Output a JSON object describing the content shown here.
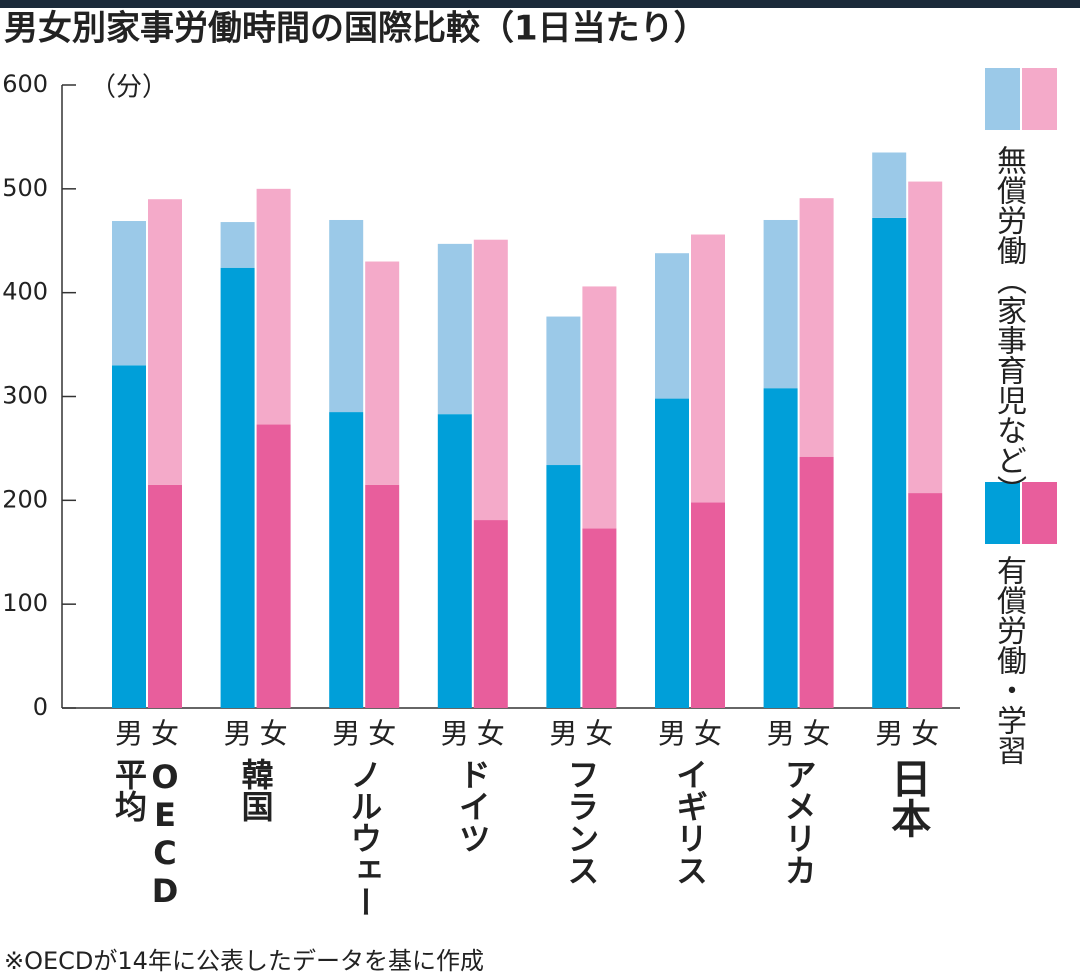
{
  "chart_data": {
    "type": "stacked_bar",
    "title": "男女別家事労働時間の国際比較（1日当たり）",
    "unit": "（分）",
    "ylim": [
      0,
      600
    ],
    "yticks": [
      0,
      100,
      200,
      300,
      400,
      500,
      600
    ],
    "genders": [
      "男",
      "女"
    ],
    "categories": [
      [
        "平均",
        "OECD"
      ],
      [
        "韓国"
      ],
      [
        "ノルウェー"
      ],
      [
        "ドイツ"
      ],
      [
        "フランス"
      ],
      [
        "イギリス"
      ],
      [
        "アメリカ"
      ],
      [
        "日本"
      ]
    ],
    "series": [
      {
        "name": "有償労働・学習",
        "colors": [
          "#009fd9",
          "#e85e9c"
        ],
        "values": [
          [
            330,
            215
          ],
          [
            424,
            273
          ],
          [
            285,
            215
          ],
          [
            283,
            181
          ],
          [
            234,
            173
          ],
          [
            298,
            198
          ],
          [
            308,
            242
          ],
          [
            472,
            207
          ]
        ]
      },
      {
        "name": "無償労働（家事育児など）",
        "colors": [
          "#9bc9e8",
          "#f4aac9"
        ],
        "values": [
          [
            139,
            275
          ],
          [
            44,
            227
          ],
          [
            185,
            215
          ],
          [
            164,
            270
          ],
          [
            143,
            233
          ],
          [
            140,
            258
          ],
          [
            162,
            249
          ],
          [
            63,
            300
          ]
        ]
      }
    ],
    "note": "※OECDが14年に公表したデータを基に作成"
  }
}
